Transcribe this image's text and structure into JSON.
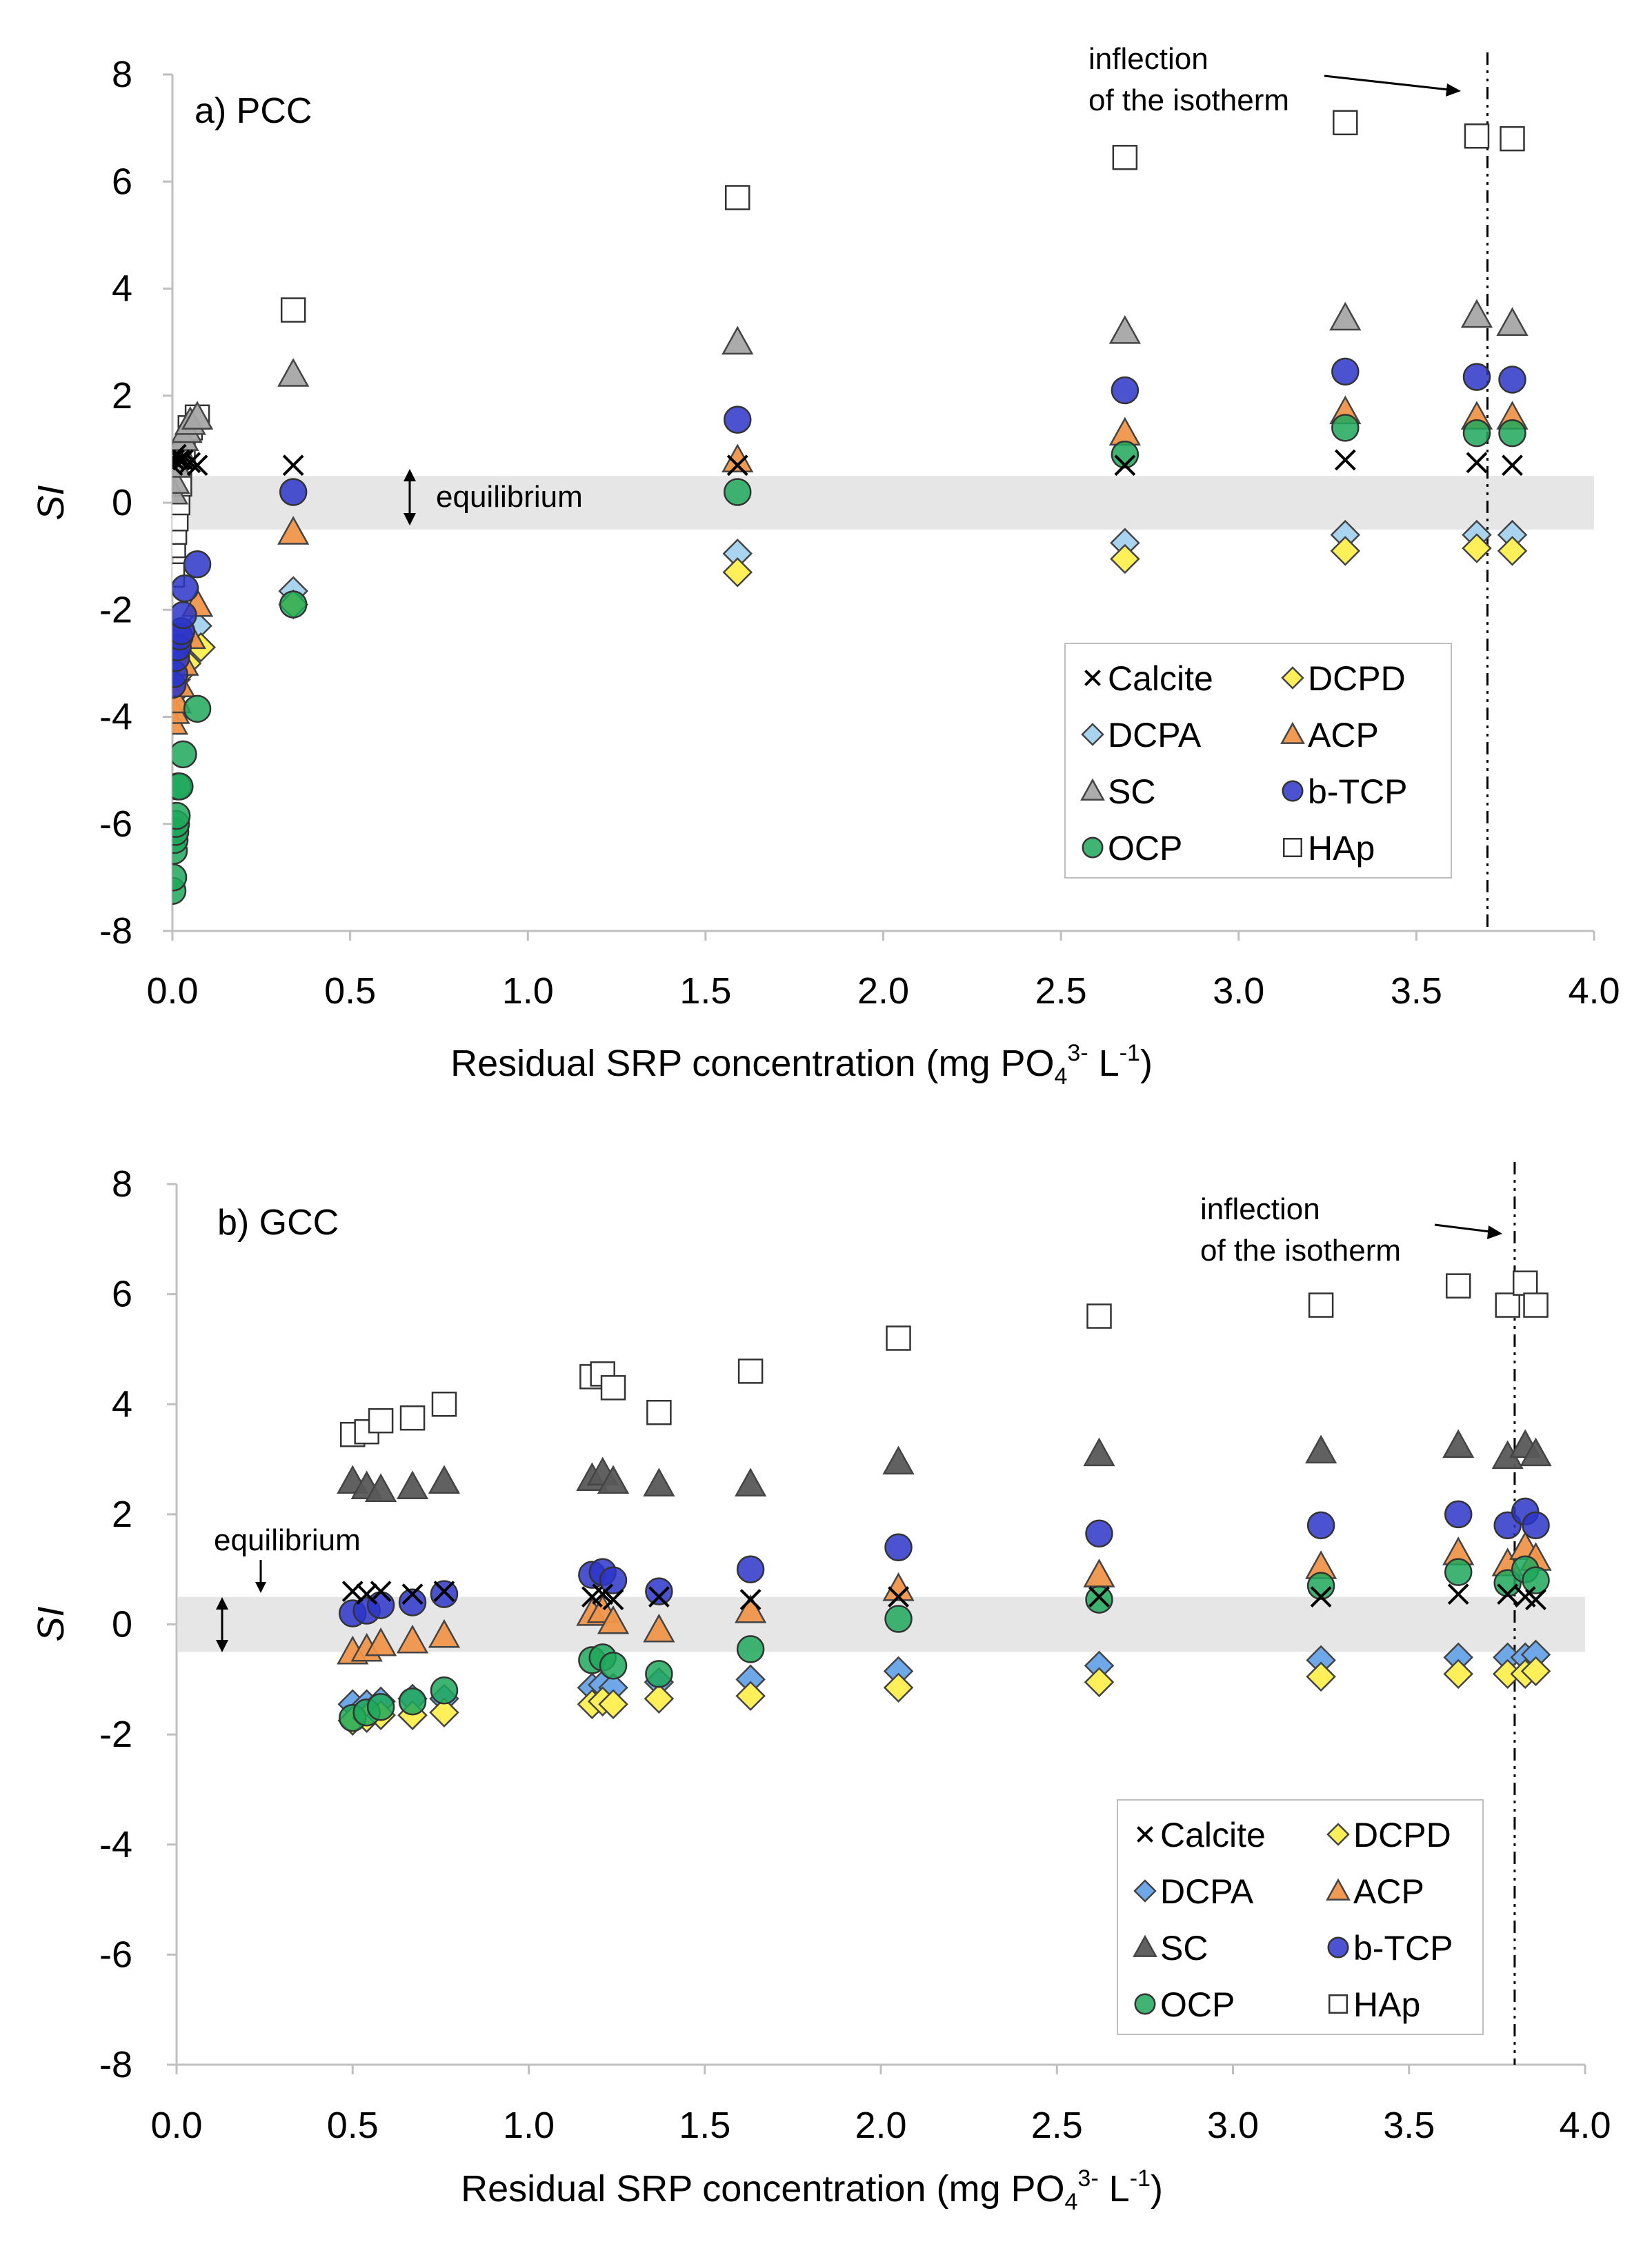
{
  "colors": {
    "calcite": "#000000",
    "dcpd": "#FFF05A",
    "dcpa_a": "#A8D4F0",
    "dcpa_b": "#6FA8E8",
    "acp": "#F0954B",
    "sc_a": "#A6A6A6",
    "sc_b": "#595959",
    "btcp": "#2B35C8",
    "ocp": "#1FA85A",
    "hap": "#FFFFFF",
    "band": "#E6E6E6"
  },
  "chart_data": [
    {
      "type": "scatter",
      "panel_label": "a) PCC",
      "xlabel_main": "Residual SRP concentration (mg PO",
      "xlabel_sub": "4",
      "xlabel_sup1": "3-",
      "xlabel_mid": " L",
      "xlabel_sup2": "-1",
      "xlabel_end": ")",
      "ylabel": "SI",
      "xlim": [
        0,
        4
      ],
      "ylim": [
        -8,
        8
      ],
      "xticks": [
        "0.0",
        "0.5",
        "1.0",
        "1.5",
        "2.0",
        "2.5",
        "3.0",
        "3.5",
        "4.0"
      ],
      "yticks": [
        "-8",
        "-6",
        "-4",
        "-2",
        "0",
        "2",
        "4",
        "6",
        "8"
      ],
      "equilibrium_band": [
        -0.5,
        0.5
      ],
      "equilibrium_label": "equilibrium",
      "inflection_x": 3.7,
      "inflection_label_1": "inflection",
      "inflection_label_2": "of the isotherm",
      "legend": [
        "Calcite",
        "DCPD",
        "DCPA",
        "ACP",
        "SC",
        "b-TCP",
        "OCP",
        "HAp"
      ],
      "series": [
        {
          "name": "Calcite",
          "x": [
            0,
            0.005,
            0.01,
            0.02,
            0.03,
            0.05,
            0.07,
            0.34,
            1.59,
            2.68,
            3.3,
            3.67,
            3.77
          ],
          "y": [
            0.7,
            0.8,
            0.9,
            0.8,
            0.8,
            0.75,
            0.7,
            0.7,
            0.7,
            0.7,
            0.8,
            0.75,
            0.7
          ]
        },
        {
          "name": "DCPD",
          "x": [
            0,
            0.01,
            0.02,
            0.04,
            0.08,
            0.34,
            1.59,
            2.68,
            3.3,
            3.67,
            3.77
          ],
          "y": [
            -3.8,
            -3.5,
            -3.2,
            -3.0,
            -2.7,
            -1.9,
            -1.3,
            -1.05,
            -0.9,
            -0.85,
            -0.9
          ]
        },
        {
          "name": "DCPA",
          "x": [
            0,
            0.01,
            0.02,
            0.04,
            0.07,
            0.34,
            1.59,
            2.68,
            3.3,
            3.67,
            3.77
          ],
          "y": [
            -3.6,
            -3.3,
            -3.0,
            -2.7,
            -2.3,
            -1.65,
            -0.95,
            -0.75,
            -0.6,
            -0.6,
            -0.6
          ]
        },
        {
          "name": "ACP",
          "x": [
            0,
            0.005,
            0.01,
            0.02,
            0.03,
            0.05,
            0.07,
            0.34,
            1.59,
            2.68,
            3.3,
            3.67,
            3.77
          ],
          "y": [
            -4.1,
            -3.9,
            -3.7,
            -3.4,
            -3.0,
            -2.5,
            -1.9,
            -0.55,
            0.8,
            1.3,
            1.7,
            1.6,
            1.6
          ]
        },
        {
          "name": "SC",
          "x": [
            0,
            0.005,
            0.01,
            0.015,
            0.02,
            0.03,
            0.04,
            0.05,
            0.07,
            0.34,
            1.59,
            2.68,
            3.3,
            3.67,
            3.77
          ],
          "y": [
            0.2,
            0.4,
            0.7,
            0.9,
            1.0,
            1.2,
            1.35,
            1.5,
            1.6,
            2.4,
            3.0,
            3.2,
            3.45,
            3.5,
            3.35
          ]
        },
        {
          "name": "b-TCP",
          "x": [
            0,
            0.005,
            0.01,
            0.015,
            0.02,
            0.025,
            0.03,
            0.035,
            0.07,
            0.34,
            1.59,
            2.68,
            3.3,
            3.67,
            3.77
          ],
          "y": [
            -3.4,
            -3.2,
            -2.9,
            -2.7,
            -2.5,
            -2.4,
            -2.1,
            -1.6,
            -1.15,
            0.2,
            1.55,
            2.1,
            2.45,
            2.35,
            2.3
          ]
        },
        {
          "name": "OCP",
          "x": [
            0,
            0.002,
            0.004,
            0.006,
            0.008,
            0.01,
            0.012,
            0.015,
            0.02,
            0.03,
            0.07,
            0.34,
            1.59,
            2.68,
            3.3,
            3.67,
            3.77
          ],
          "y": [
            -7.25,
            -7.0,
            -6.5,
            -6.3,
            -6.15,
            -6.0,
            -5.85,
            -5.3,
            -5.3,
            -4.7,
            -3.85,
            -1.9,
            0.2,
            0.9,
            1.4,
            1.3,
            1.3
          ]
        },
        {
          "name": "HAp",
          "x": [
            0,
            0.003,
            0.006,
            0.01,
            0.015,
            0.02,
            0.03,
            0.05,
            0.07,
            0.34,
            1.59,
            2.68,
            3.3,
            3.67,
            3.77
          ],
          "y": [
            -1.35,
            -0.8,
            -0.55,
            -0.3,
            0.0,
            0.35,
            0.9,
            1.4,
            1.6,
            3.6,
            5.7,
            6.45,
            7.1,
            6.85,
            6.8
          ]
        }
      ]
    },
    {
      "type": "scatter",
      "panel_label": "b) GCC",
      "xlabel_main": "Residual SRP concentration (mg PO",
      "xlabel_sub": "4",
      "xlabel_sup1": "3-",
      "xlabel_mid": " L",
      "xlabel_sup2": "-1",
      "xlabel_end": ")",
      "ylabel": "SI",
      "xlim": [
        0,
        4
      ],
      "ylim": [
        -8,
        8
      ],
      "xticks": [
        "0.0",
        "0.5",
        "1.0",
        "1.5",
        "2.0",
        "2.5",
        "3.0",
        "3.5",
        "4.0"
      ],
      "yticks": [
        "-8",
        "-6",
        "-4",
        "-2",
        "0",
        "2",
        "4",
        "6",
        "8"
      ],
      "equilibrium_band": [
        -0.5,
        0.5
      ],
      "equilibrium_label": "equilibrium",
      "inflection_x": 3.8,
      "inflection_label_1": "inflection",
      "inflection_label_2": "of the isotherm",
      "legend": [
        "Calcite",
        "DCPD",
        "DCPA",
        "ACP",
        "SC",
        "b-TCP",
        "OCP",
        "HAp"
      ],
      "series": [
        {
          "name": "Calcite",
          "x": [
            0.5,
            0.54,
            0.58,
            0.67,
            0.76,
            1.18,
            1.21,
            1.24,
            1.37,
            1.63,
            2.05,
            2.62,
            3.25,
            3.64,
            3.78,
            3.83,
            3.86
          ],
          "y": [
            0.6,
            0.55,
            0.6,
            0.55,
            0.6,
            0.5,
            0.55,
            0.45,
            0.5,
            0.45,
            0.5,
            0.5,
            0.5,
            0.55,
            0.55,
            0.5,
            0.45
          ]
        },
        {
          "name": "DCPD",
          "x": [
            0.5,
            0.54,
            0.58,
            0.67,
            0.76,
            1.18,
            1.21,
            1.24,
            1.37,
            1.63,
            2.05,
            2.62,
            3.25,
            3.64,
            3.78,
            3.83,
            3.86
          ],
          "y": [
            -1.75,
            -1.7,
            -1.65,
            -1.65,
            -1.6,
            -1.45,
            -1.4,
            -1.45,
            -1.35,
            -1.3,
            -1.15,
            -1.05,
            -0.95,
            -0.9,
            -0.9,
            -0.9,
            -0.85
          ]
        },
        {
          "name": "DCPA",
          "x": [
            0.5,
            0.54,
            0.58,
            0.67,
            0.76,
            1.18,
            1.21,
            1.24,
            1.37,
            1.63,
            2.05,
            2.62,
            3.25,
            3.64,
            3.78,
            3.83,
            3.86
          ],
          "y": [
            -1.45,
            -1.45,
            -1.4,
            -1.35,
            -1.35,
            -1.15,
            -1.1,
            -1.15,
            -1.05,
            -1.0,
            -0.85,
            -0.75,
            -0.65,
            -0.6,
            -0.6,
            -0.6,
            -0.55
          ]
        },
        {
          "name": "ACP",
          "x": [
            0.5,
            0.54,
            0.58,
            0.67,
            0.76,
            1.18,
            1.21,
            1.24,
            1.37,
            1.63,
            2.05,
            2.62,
            3.25,
            3.64,
            3.78,
            3.83,
            3.86
          ],
          "y": [
            -0.5,
            -0.45,
            -0.35,
            -0.3,
            -0.2,
            0.2,
            0.25,
            0.05,
            -0.1,
            0.25,
            0.65,
            0.9,
            1.05,
            1.3,
            1.1,
            1.4,
            1.2
          ]
        },
        {
          "name": "SC",
          "x": [
            0.5,
            0.54,
            0.58,
            0.67,
            0.76,
            1.18,
            1.21,
            1.24,
            1.37,
            1.63,
            2.05,
            2.62,
            3.25,
            3.64,
            3.78,
            3.83,
            3.86
          ],
          "y": [
            2.6,
            2.5,
            2.45,
            2.5,
            2.6,
            2.65,
            2.75,
            2.6,
            2.55,
            2.55,
            2.95,
            3.1,
            3.15,
            3.25,
            3.05,
            3.25,
            3.1
          ]
        },
        {
          "name": "b-TCP",
          "x": [
            0.5,
            0.54,
            0.58,
            0.67,
            0.76,
            1.18,
            1.21,
            1.24,
            1.37,
            1.63,
            2.05,
            2.62,
            3.25,
            3.64,
            3.78,
            3.83,
            3.86
          ],
          "y": [
            0.2,
            0.25,
            0.35,
            0.4,
            0.55,
            0.9,
            0.95,
            0.8,
            0.6,
            1.0,
            1.4,
            1.65,
            1.8,
            2.0,
            1.8,
            2.05,
            1.8
          ]
        },
        {
          "name": "OCP",
          "x": [
            0.5,
            0.54,
            0.58,
            0.67,
            0.76,
            1.18,
            1.21,
            1.24,
            1.37,
            1.63,
            2.05,
            2.62,
            3.25,
            3.64,
            3.78,
            3.83,
            3.86
          ],
          "y": [
            -1.7,
            -1.6,
            -1.5,
            -1.4,
            -1.2,
            -0.65,
            -0.6,
            -0.75,
            -0.9,
            -0.45,
            0.1,
            0.45,
            0.7,
            0.95,
            0.75,
            1.0,
            0.8
          ]
        },
        {
          "name": "HAp",
          "x": [
            0.5,
            0.54,
            0.58,
            0.67,
            0.76,
            1.18,
            1.21,
            1.24,
            1.37,
            1.63,
            2.05,
            2.62,
            3.25,
            3.64,
            3.78,
            3.83,
            3.86
          ],
          "y": [
            3.45,
            3.5,
            3.7,
            3.75,
            4.0,
            4.5,
            4.55,
            4.3,
            3.85,
            4.6,
            5.2,
            5.6,
            5.8,
            6.15,
            5.8,
            6.2,
            5.8
          ]
        }
      ]
    }
  ]
}
